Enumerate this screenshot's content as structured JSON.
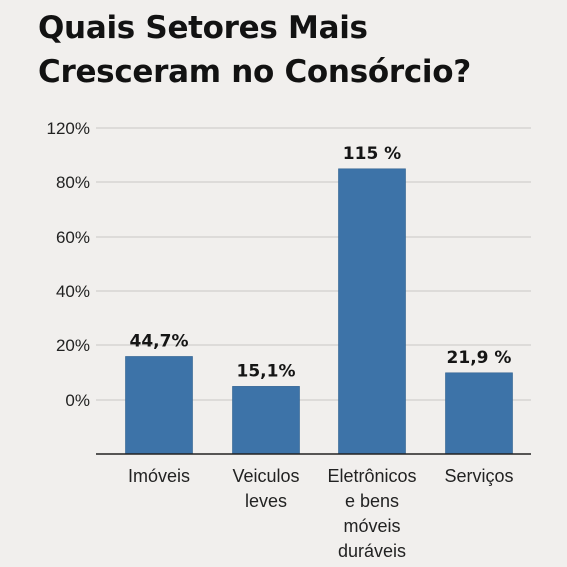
{
  "chart_data": {
    "type": "bar",
    "title": "Quais Setores Mais Cresceram no Consórcio?",
    "xlabel": "",
    "ylabel": "",
    "categories": [
      [
        "Imóveis"
      ],
      [
        "Veiculos",
        "leves"
      ],
      [
        "Eletrônicos",
        "e bens",
        "móveis",
        "duráveis"
      ],
      [
        "Serviços"
      ]
    ],
    "values": [
      44.7,
      15.1,
      115,
      21.9
    ],
    "bar_heights_as_drawn": [
      16,
      5,
      85,
      10
    ],
    "data_labels": [
      "44,7%",
      "15,1%",
      "115 %",
      "21,9 %"
    ],
    "y_ticks": [
      "0%",
      "20%",
      "40%",
      "60%",
      "80%",
      "120%"
    ],
    "grid": true,
    "bar_color": "#3d73a8",
    "grid_color": "#c9c7c5",
    "axis_color": "#222222"
  }
}
